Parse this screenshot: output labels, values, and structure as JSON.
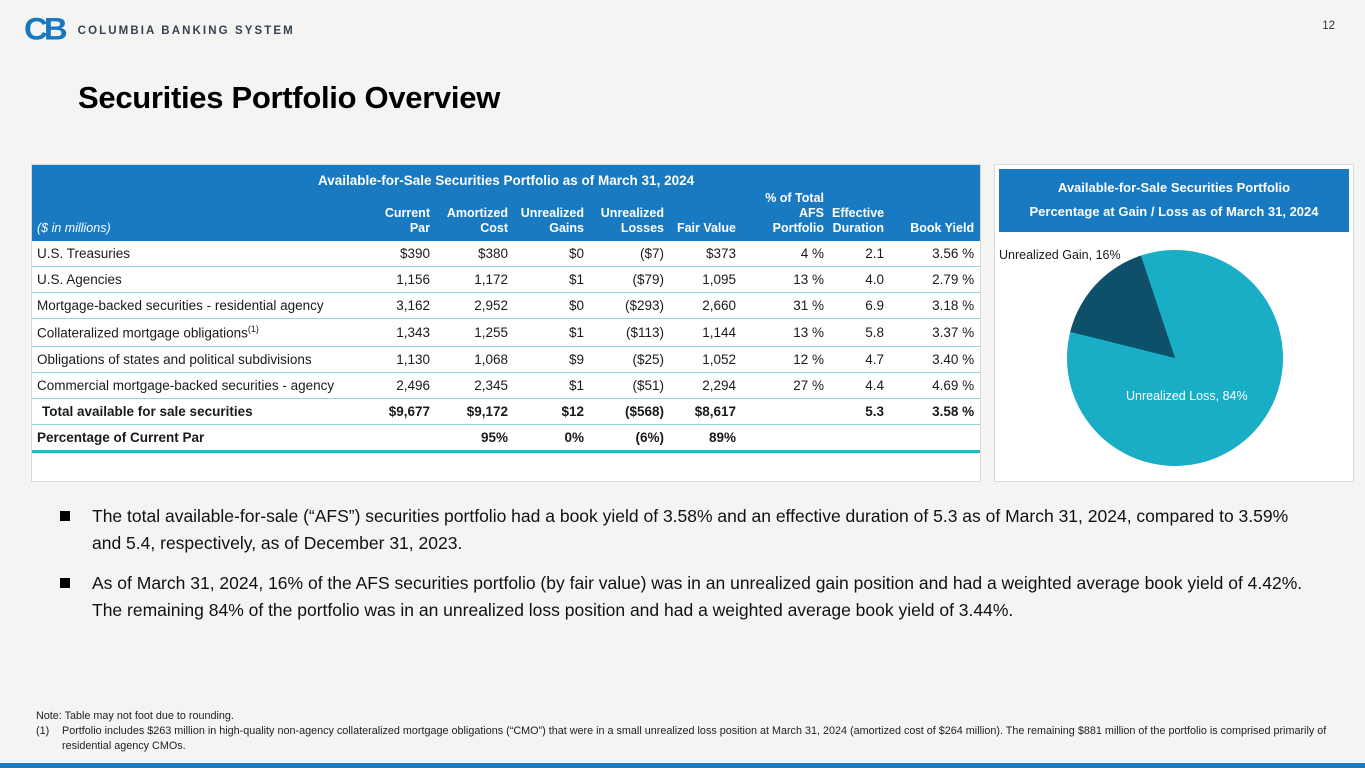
{
  "page_number": "12",
  "brand": {
    "mark": "CB",
    "name": "COLUMBIA BANKING SYSTEM"
  },
  "slide_title": "Securities Portfolio Overview",
  "afs_table": {
    "title": "Available-for-Sale Securities Portfolio as of March 31, 2024",
    "unit_label": "($ in millions)",
    "columns": [
      "Current\nPar",
      "Amortized\nCost",
      "Unrealized\nGains",
      "Unrealized\nLosses",
      "Fair Value",
      "% of Total\nAFS\nPortfolio",
      "Effective\nDuration",
      "Book Yield"
    ],
    "rows": [
      {
        "label": "U.S. Treasuries",
        "values": [
          "$390",
          "$380",
          "$0",
          "($7)",
          "$373",
          "4 %",
          "2.1",
          "3.56 %"
        ]
      },
      {
        "label": "U.S. Agencies",
        "values": [
          "1,156",
          "1,172",
          "$1",
          "($79)",
          "1,095",
          "13 %",
          "4.0",
          "2.79 %"
        ]
      },
      {
        "label": "Mortgage-backed securities - residential agency",
        "values": [
          "3,162",
          "2,952",
          "$0",
          "($293)",
          "2,660",
          "31 %",
          "6.9",
          "3.18 %"
        ]
      },
      {
        "label": "Collateralized mortgage obligations",
        "sup": "(1)",
        "values": [
          "1,343",
          "1,255",
          "$1",
          "($113)",
          "1,144",
          "13 %",
          "5.8",
          "3.37 %"
        ]
      },
      {
        "label": "Obligations of states and political subdivisions",
        "values": [
          "1,130",
          "1,068",
          "$9",
          "($25)",
          "1,052",
          "12 %",
          "4.7",
          "3.40 %"
        ]
      },
      {
        "label": "Commercial mortgage-backed securities - agency",
        "values": [
          "2,496",
          "2,345",
          "$1",
          "($51)",
          "2,294",
          "27 %",
          "4.4",
          "4.69 %"
        ]
      },
      {
        "label": "Total available for sale securities",
        "style": "total-row",
        "values": [
          "$9,677",
          "$9,172",
          "$12",
          "($568)",
          "$8,617",
          "",
          "5.3",
          "3.58 %"
        ]
      },
      {
        "label": "Percentage of Current Par",
        "style": "pct-row",
        "values": [
          "",
          "95%",
          "0%",
          "(6%)",
          "89%",
          "",
          "",
          ""
        ]
      }
    ]
  },
  "gain_loss_chart": {
    "title_line1": "Available-for-Sale Securities Portfolio",
    "title_line2": "Percentage at Gain / Loss as of March 31, 2024",
    "gain_label": "Unrealized Gain, 16%",
    "loss_label": "Unrealized Loss, 84%"
  },
  "chart_data": {
    "type": "pie",
    "title": "Available-for-Sale Securities Portfolio Percentage at Gain / Loss as of March 31, 2024",
    "slices": [
      {
        "label": "Unrealized Gain",
        "value": 16,
        "color": "#0e4f6a"
      },
      {
        "label": "Unrealized Loss",
        "value": 84,
        "color": "#19adc6"
      }
    ],
    "start_angle_deg": 284,
    "legend_position": "data-labels"
  },
  "bullets": [
    "The total available-for-sale (“AFS”) securities portfolio had a book yield of 3.58% and an effective duration of 5.3 as of March 31, 2024, compared to 3.59% and 5.4, respectively, as of December 31, 2023.",
    "As of March 31, 2024, 16% of the AFS securities portfolio (by fair value) was in an unrealized gain position and had a weighted average book yield of 4.42%. The remaining 84% of the portfolio was in an unrealized loss position and had a weighted average book yield of 3.44%."
  ],
  "notes": [
    {
      "marker": "",
      "text": "Note: Table may not foot due to rounding."
    },
    {
      "marker": "(1)",
      "text": "Portfolio includes $263 million in high-quality non-agency collateralized mortgage obligations (“CMO”) that were in a small unrealized loss position at March 31, 2024 (amortized cost of $264 million). The remaining $881 million of the portfolio is comprised primarily of residential agency CMOs."
    }
  ],
  "colors": {
    "header_blue": "#1979c1",
    "brand_blue": "#1878be",
    "teal_rule": "#8fd4e0",
    "teal_rule_strong": "#27b6cb",
    "pie_loss_teal": "#19adc6",
    "pie_gain_navy": "#0e4f6a"
  }
}
